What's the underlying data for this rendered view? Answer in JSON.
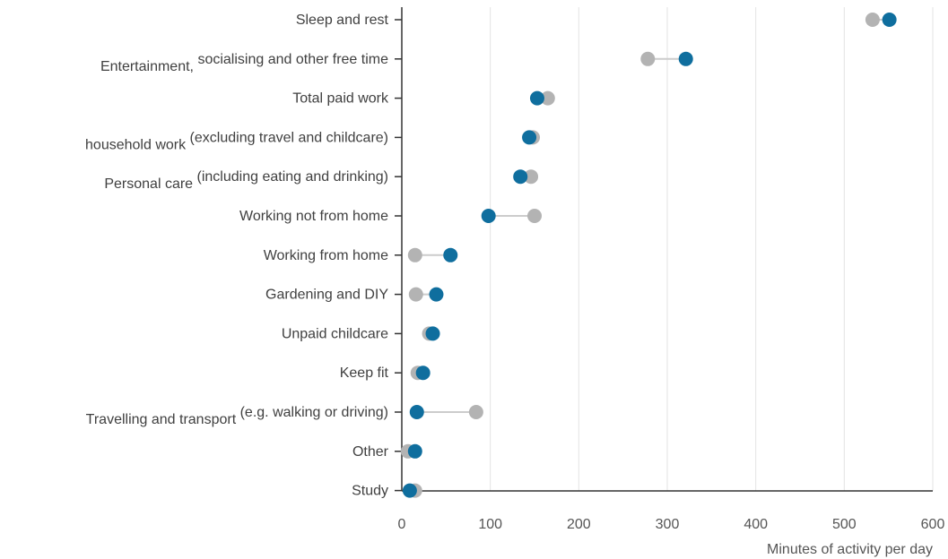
{
  "chart_data": {
    "type": "scatter",
    "subtype": "dumbbell",
    "xlabel": "Minutes of activity per day",
    "xlim": [
      0,
      600
    ],
    "x_ticks": [
      "0",
      "100",
      "200",
      "300",
      "400",
      "500",
      "600"
    ],
    "grid": "vertical",
    "colors": {
      "series_a": "#b3b3b3",
      "series_b": "#0f6e9e",
      "connector": "#cccccc"
    },
    "categories": [
      {
        "label_prefix": "",
        "label": "Sleep and rest",
        "gray": 532,
        "blue": 551
      },
      {
        "label_prefix": "Entertainment,",
        "label": "socialising and other free time",
        "gray": 278,
        "blue": 321
      },
      {
        "label_prefix": "",
        "label": "Total paid work",
        "gray": 165,
        "blue": 153
      },
      {
        "label_prefix": "household work",
        "label": "(excluding travel and childcare)",
        "gray": 148,
        "blue": 144
      },
      {
        "label_prefix": "Personal care",
        "label": "(including eating and drinking)",
        "gray": 146,
        "blue": 134
      },
      {
        "label_prefix": "",
        "label": "Working not from home",
        "gray": 150,
        "blue": 98
      },
      {
        "label_prefix": "",
        "label": "Working from home",
        "gray": 15,
        "blue": 55
      },
      {
        "label_prefix": "",
        "label": "Gardening and DIY",
        "gray": 16,
        "blue": 39
      },
      {
        "label_prefix": "",
        "label": "Unpaid childcare",
        "gray": 31,
        "blue": 35
      },
      {
        "label_prefix": "",
        "label": "Keep fit",
        "gray": 18,
        "blue": 24
      },
      {
        "label_prefix": "Travelling and transport",
        "label": "(e.g. walking or driving)",
        "gray": 84,
        "blue": 17
      },
      {
        "label_prefix": "",
        "label": "Other",
        "gray": 7,
        "blue": 15
      },
      {
        "label_prefix": "",
        "label": "Study",
        "gray": 15,
        "blue": 9
      }
    ]
  }
}
